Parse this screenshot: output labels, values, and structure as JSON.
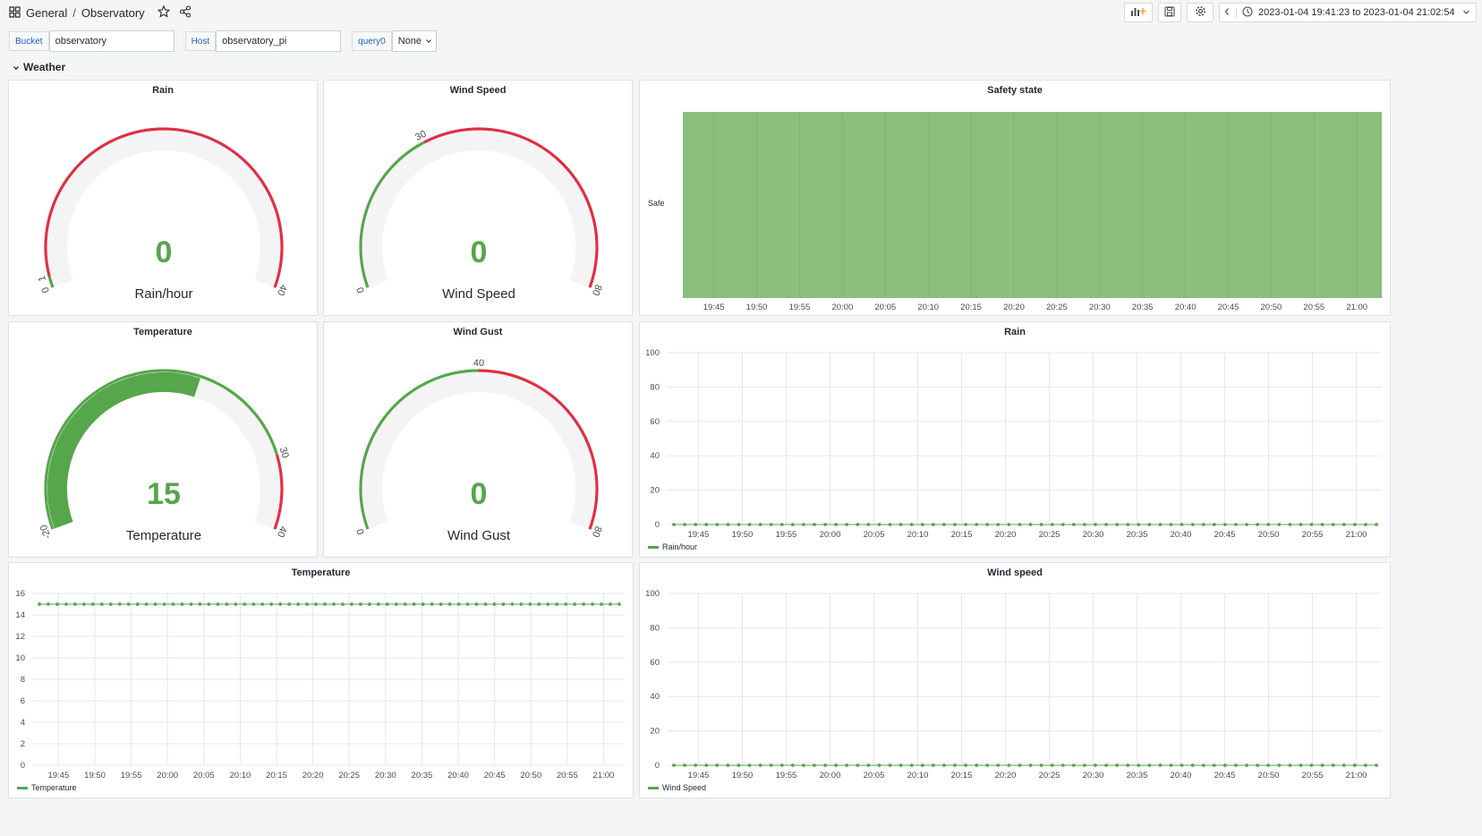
{
  "header": {
    "folder": "General",
    "separator": "/",
    "dashboard": "Observatory",
    "time_range": "2023-01-04 19:41:23 to 2023-01-04 21:02:54"
  },
  "variables": [
    {
      "label": "Bucket",
      "value": "observatory"
    },
    {
      "label": "Host",
      "value": "observatory_pi"
    },
    {
      "label": "query0",
      "value": "None"
    }
  ],
  "row": {
    "title": "Weather"
  },
  "colors": {
    "green": "#56a64b",
    "red": "#e02f44",
    "track": "#f4f4f4",
    "safe_fill": "#8abf7c"
  },
  "gauges": [
    {
      "id": "rain",
      "title": "Rain",
      "value": "0",
      "unit": "Rain/hour",
      "min": "0",
      "max": "40",
      "min_num": 0,
      "max_num": 40,
      "value_num": 0,
      "thresholds": [
        {
          "from": 0,
          "to": 1,
          "color": "#56a64b"
        },
        {
          "from": 1,
          "to": 40,
          "color": "#e02f44"
        }
      ],
      "tick_labels": [
        {
          "v": 0,
          "t": "0"
        },
        {
          "v": 1,
          "t": "1"
        },
        {
          "v": 40,
          "t": "40"
        }
      ]
    },
    {
      "id": "wind_speed",
      "title": "Wind Speed",
      "value": "0",
      "unit": "Wind Speed",
      "min": "0",
      "max": "80",
      "min_num": 0,
      "max_num": 80,
      "value_num": 0,
      "thresholds": [
        {
          "from": 0,
          "to": 30,
          "color": "#56a64b"
        },
        {
          "from": 30,
          "to": 80,
          "color": "#e02f44"
        }
      ],
      "tick_labels": [
        {
          "v": 0,
          "t": "0"
        },
        {
          "v": 30,
          "t": "30"
        },
        {
          "v": 80,
          "t": "80"
        }
      ]
    },
    {
      "id": "temperature",
      "title": "Temperature",
      "value": "15",
      "unit": "Temperature",
      "min": "-20",
      "max": "40",
      "min_num": -20,
      "max_num": 40,
      "value_num": 15,
      "thresholds": [
        {
          "from": -20,
          "to": 30,
          "color": "#56a64b"
        },
        {
          "from": 30,
          "to": 40,
          "color": "#e02f44"
        }
      ],
      "tick_labels": [
        {
          "v": -20,
          "t": "-20"
        },
        {
          "v": 30,
          "t": "30"
        },
        {
          "v": 40,
          "t": "40"
        }
      ]
    },
    {
      "id": "wind_gust",
      "title": "Wind Gust",
      "value": "0",
      "unit": "Wind Gust",
      "min": "0",
      "max": "80",
      "min_num": 0,
      "max_num": 80,
      "value_num": 0,
      "thresholds": [
        {
          "from": 0,
          "to": 40,
          "color": "#56a64b"
        },
        {
          "from": 40,
          "to": 80,
          "color": "#e02f44"
        }
      ],
      "tick_labels": [
        {
          "v": 0,
          "t": "0"
        },
        {
          "v": 40,
          "t": "40"
        },
        {
          "v": 80,
          "t": "80"
        }
      ]
    }
  ],
  "safety": {
    "title": "Safety state",
    "state_label": "Safe"
  },
  "time_ticks": [
    "19:45",
    "19:50",
    "19:55",
    "20:00",
    "20:05",
    "20:10",
    "20:15",
    "20:20",
    "20:25",
    "20:30",
    "20:35",
    "20:40",
    "20:45",
    "20:50",
    "20:55",
    "21:00"
  ],
  "chart_data": [
    {
      "type": "line",
      "title": "Rain",
      "ylim": [
        0,
        100
      ],
      "yticks": [
        "0",
        "20",
        "40",
        "60",
        "80",
        "100"
      ],
      "x_range": [
        "19:41:23",
        "21:02:54"
      ],
      "series": [
        {
          "name": "Rain/hour",
          "color": "#56a64b",
          "constant_value": 0,
          "points": 66
        }
      ]
    },
    {
      "type": "line",
      "title": "Temperature",
      "ylim": [
        0,
        16
      ],
      "yticks": [
        "0",
        "2",
        "4",
        "6",
        "8",
        "10",
        "12",
        "14",
        "16"
      ],
      "x_range": [
        "19:41:23",
        "21:02:54"
      ],
      "series": [
        {
          "name": "Temperature",
          "color": "#56a64b",
          "constant_value": 15,
          "points": 66
        }
      ]
    },
    {
      "type": "line",
      "title": "Wind speed",
      "ylim": [
        0,
        100
      ],
      "yticks": [
        "0",
        "20",
        "40",
        "60",
        "80",
        "100"
      ],
      "x_range": [
        "19:41:23",
        "21:02:54"
      ],
      "series": [
        {
          "name": "Wind Speed",
          "color": "#56a64b",
          "constant_value": 0,
          "points": 66
        }
      ]
    }
  ]
}
